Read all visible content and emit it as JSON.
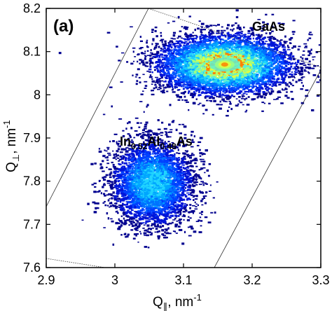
{
  "chart_data": {
    "type": "heatmap",
    "panel_label": "(a)",
    "xlabel": {
      "main": "Q",
      "sub": "∥",
      "suffix": ", nm",
      "sup": "-1"
    },
    "ylabel": {
      "main": "Q",
      "sub": "⊥",
      "suffix": ", nm",
      "sup": "-1"
    },
    "xlim": [
      2.9,
      3.3
    ],
    "ylim": [
      7.6,
      8.2
    ],
    "x_ticks": [
      "2.9",
      "3",
      "3.1",
      "3.2",
      "3.3"
    ],
    "y_ticks": [
      "7.6",
      "7.7",
      "7.8",
      "7.9",
      "8",
      "8.1",
      "8.2"
    ],
    "x_tick_values": [
      2.9,
      3.0,
      3.1,
      3.2,
      3.3
    ],
    "y_tick_values": [
      7.6,
      7.7,
      7.8,
      7.9,
      8.0,
      8.1,
      8.2
    ],
    "peaks": [
      {
        "label": "GaAs",
        "x": 3.16,
        "y": 8.07,
        "spread_x": 0.05,
        "spread_y": 0.035,
        "intensity": 1.0
      },
      {
        "label": "In0.52Al0.48As",
        "label_parts": [
          "In",
          "0.52",
          "Al",
          "0.48",
          "As"
        ],
        "x": 3.055,
        "y": 7.795,
        "spread_x": 0.03,
        "spread_y": 0.05,
        "intensity": 0.6
      }
    ],
    "colormap": [
      "#00008f",
      "#0015d8",
      "#0040ff",
      "#0072ff",
      "#00a6ff",
      "#20d4ff",
      "#60f0d0",
      "#a0ff80",
      "#e0ff40",
      "#ff8000"
    ],
    "grid": false,
    "legend": "none"
  }
}
